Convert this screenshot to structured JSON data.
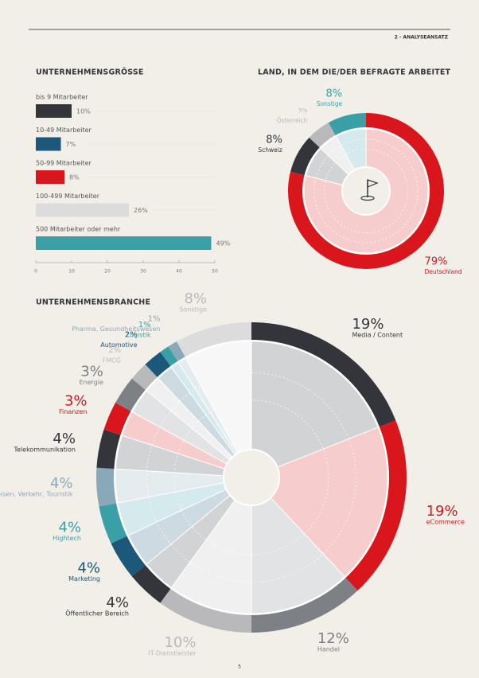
{
  "header": {
    "section": "2 - ANALYSEANSATZ"
  },
  "footer": {
    "page": "5"
  },
  "chart_data": [
    {
      "type": "bar",
      "orientation": "horizontal",
      "title": "UNTERNEHMENSGRÖSSE",
      "categories": [
        "bis 9 Mitarbeiter",
        "10-49 Mitarbeiter",
        "50-99 Mitarbeiter",
        "100-499 Mitarbeiter",
        "500 Mitarbeiter oder mehr"
      ],
      "values": [
        10,
        7,
        8,
        26,
        49
      ],
      "value_labels": [
        "10%",
        "7%",
        "8%",
        "26%",
        "49%"
      ],
      "colors": [
        "#33353b",
        "#1c587a",
        "#d9161c",
        "#dcdcdc",
        "#3aa0a8"
      ],
      "xlim": [
        0,
        50
      ],
      "xticks": [
        0,
        10,
        20,
        30,
        40,
        50
      ]
    },
    {
      "type": "donut",
      "title": "LAND, IN DEM DIE/DER BEFRAGTE ARBEITET",
      "categories": [
        "Deutschland",
        "Schweiz",
        "Österreich",
        "Sonstige"
      ],
      "values": [
        79,
        8,
        5,
        8
      ],
      "value_labels": [
        "79%",
        "8%",
        "5%",
        "8%"
      ],
      "colors": [
        "#d9161c",
        "#33353b",
        "#b9b9bb",
        "#3aa0a8"
      ]
    },
    {
      "type": "donut",
      "title": "UNTERNEHMENSBRANCHE",
      "categories": [
        "Media / Content",
        "eCommerce",
        "Handel",
        "IT-Dienstleister",
        "Öffentlicher Bereich",
        "Marketing",
        "Hightech",
        "Reisen, Verkehr, Touristik",
        "Telekommunikation",
        "Finanzen",
        "Energie",
        "FMCG",
        "Automotive",
        "Logistik",
        "Pharma, Gesundheitswesen",
        "Sonstige"
      ],
      "values": [
        19,
        19,
        12,
        10,
        4,
        4,
        4,
        4,
        4,
        3,
        3,
        2,
        2,
        1,
        1,
        8
      ],
      "value_labels": [
        "19%",
        "19%",
        "12%",
        "10%",
        "4%",
        "4%",
        "4%",
        "4%",
        "4%",
        "3%",
        "3%",
        "2%",
        "2%",
        "1%",
        "1%",
        "8%"
      ],
      "colors": [
        "#33353b",
        "#d9161c",
        "#7d8085",
        "#b9b9bb",
        "#33353b",
        "#1c587a",
        "#3aa0a8",
        "#8aa9b8",
        "#33353b",
        "#d9161c",
        "#7d8085",
        "#b9b9bb",
        "#1c587a",
        "#3aa0a8",
        "#8aa9b8",
        "#dcdcdc"
      ]
    }
  ]
}
